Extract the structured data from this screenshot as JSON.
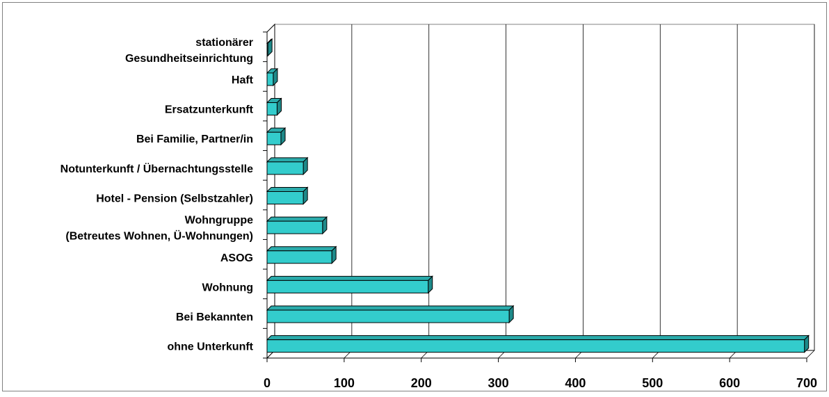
{
  "chart_data": {
    "type": "bar",
    "orientation": "horizontal",
    "style": "3d",
    "categories": [
      [
        "stationärer",
        "Gesundheitseinrichtung"
      ],
      [
        "Haft"
      ],
      [
        "Ersatzunterkunft"
      ],
      [
        "Bei Familie, Partner/in"
      ],
      [
        "Notunterkunft / Übernachtungsstelle"
      ],
      [
        "Hotel - Pension (Selbstzahler)"
      ],
      [
        "Wohngruppe",
        "(Betreutes Wohnen, Ü-Wohnungen)"
      ],
      [
        "ASOG"
      ],
      [
        "Wohnung"
      ],
      [
        "Bei Bekannten"
      ],
      [
        "ohne Unterkunft"
      ]
    ],
    "values": [
      1,
      8,
      13,
      18,
      47,
      47,
      72,
      84,
      209,
      314,
      697
    ],
    "xlim": [
      0,
      700
    ],
    "xticks": [
      0,
      100,
      200,
      300,
      400,
      500,
      600,
      700
    ],
    "grid": "vertical",
    "legend": "none",
    "title": "",
    "xlabel": "",
    "ylabel": "",
    "colors": {
      "bar_front": "#33CCCC",
      "bar_top": "#2AABAB",
      "bar_side": "#1E8A8A",
      "outline": "#000000",
      "grid": "#000000",
      "frame": "#808080"
    }
  }
}
